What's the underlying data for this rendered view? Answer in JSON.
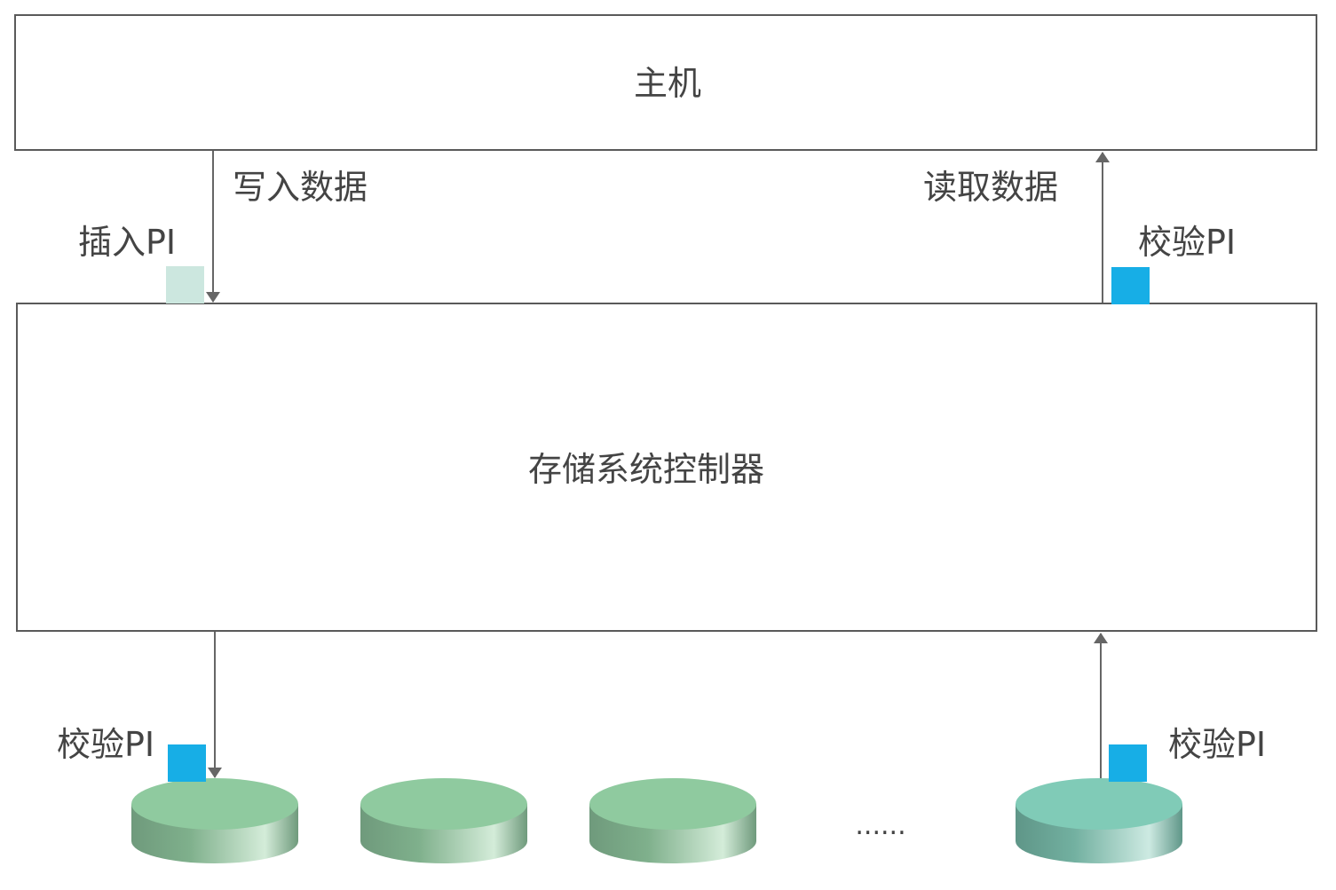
{
  "host": {
    "label": "主机"
  },
  "controller": {
    "label": "存储系统控制器"
  },
  "flows": {
    "write_label": "写入数据",
    "read_label": "读取数据",
    "insert_pi_label": "插入PI",
    "verify_pi_host_label": "校验PI",
    "verify_pi_disk_left_label": "校验PI",
    "verify_pi_disk_right_label": "校验PI"
  },
  "disks": {
    "ellipsis": "......"
  },
  "colors": {
    "border": "#5a5a5a",
    "arrow": "#666666",
    "pi_inserted": "#cce7df",
    "pi_verified": "#17aee6",
    "disk_top_green": "#8fca9f",
    "disk_top_teal": "#80cbb7"
  }
}
